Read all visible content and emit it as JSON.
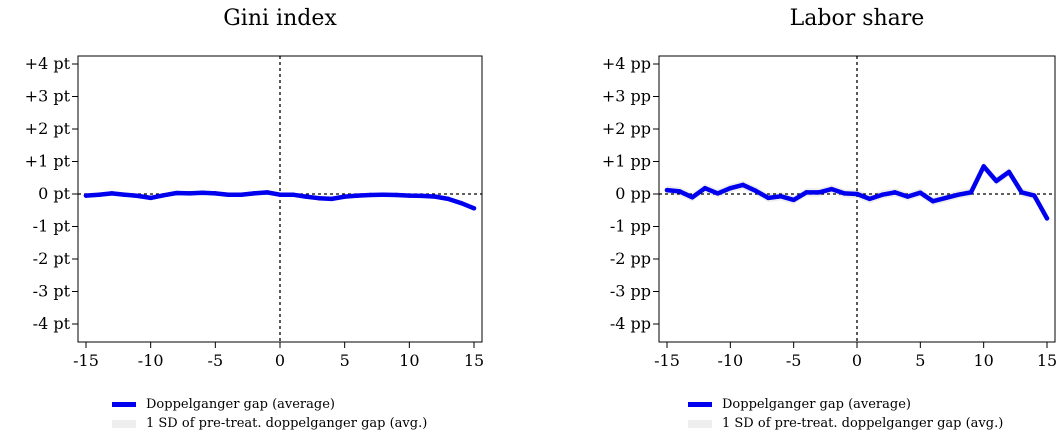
{
  "chart_data": [
    {
      "type": "line",
      "title": "Gini index",
      "xlabel": "",
      "ylabel": "",
      "xlim": [
        -15,
        15
      ],
      "ylim": [
        -4,
        4
      ],
      "x_ticks": [
        -15,
        -10,
        -5,
        0,
        5,
        10,
        15
      ],
      "x_tick_labels": [
        "-15",
        "-10",
        "-5",
        "0",
        "5",
        "10",
        "15"
      ],
      "y_ticks": [
        4,
        3,
        2,
        1,
        0,
        -1,
        -2,
        -3,
        -4
      ],
      "y_tick_labels": [
        "+4 pt",
        "+3 pt",
        "+2 pt",
        "+1 pt",
        "0 pt",
        "-1 pt",
        "-2 pt",
        "-3 pt",
        "-4 pt"
      ],
      "reference_lines": {
        "vertical_x": 0,
        "horizontal_y": 0
      },
      "legend": [
        "Doppelganger gap (average)",
        "1 SD of pre-treat. doppelganger gap (avg.)"
      ],
      "legend_position": "bottom",
      "x": [
        -15,
        -14,
        -13,
        -12,
        -11,
        -10,
        -9,
        -8,
        -7,
        -6,
        -5,
        -4,
        -3,
        -2,
        -1,
        0,
        1,
        2,
        3,
        4,
        5,
        6,
        7,
        8,
        9,
        10,
        11,
        12,
        13,
        14,
        15
      ],
      "series": [
        {
          "name": "Doppelganger gap (average)",
          "color": "#0000ee",
          "values": [
            -0.05,
            -0.02,
            0.02,
            -0.02,
            -0.06,
            -0.12,
            -0.04,
            0.03,
            0.02,
            0.04,
            0.02,
            -0.02,
            -0.02,
            0.02,
            0.05,
            -0.02,
            -0.02,
            -0.08,
            -0.13,
            -0.15,
            -0.08,
            -0.05,
            -0.03,
            -0.02,
            -0.03,
            -0.05,
            -0.06,
            -0.08,
            -0.15,
            -0.28,
            -0.44
          ]
        }
      ],
      "band": {
        "name": "1 SD of pre-treat. doppelganger gap (avg.)",
        "color": "#eeeeee",
        "sd": 0.06
      }
    },
    {
      "type": "line",
      "title": "Labor share",
      "xlabel": "",
      "ylabel": "",
      "xlim": [
        -15,
        15
      ],
      "ylim": [
        -4,
        4
      ],
      "x_ticks": [
        -15,
        -10,
        -5,
        0,
        5,
        10,
        15
      ],
      "x_tick_labels": [
        "-15",
        "-10",
        "-5",
        "0",
        "5",
        "10",
        "15"
      ],
      "y_ticks": [
        4,
        3,
        2,
        1,
        0,
        -1,
        -2,
        -3,
        -4
      ],
      "y_tick_labels": [
        "+4 pp",
        "+3 pp",
        "+2 pp",
        "+1 pp",
        "0 pp",
        "-1 pp",
        "-2 pp",
        "-3 pp",
        "-4 pp"
      ],
      "reference_lines": {
        "vertical_x": 0,
        "horizontal_y": 0
      },
      "legend": [
        "Doppelganger gap (average)",
        "1 SD of pre-treat. doppelganger gap (avg.)"
      ],
      "legend_position": "bottom",
      "x": [
        -15,
        -14,
        -13,
        -12,
        -11,
        -10,
        -9,
        -8,
        -7,
        -6,
        -5,
        -4,
        -3,
        -2,
        -1,
        0,
        1,
        2,
        3,
        4,
        5,
        6,
        7,
        8,
        9,
        10,
        11,
        12,
        13,
        14,
        15
      ],
      "series": [
        {
          "name": "Doppelganger gap (average)",
          "color": "#0000ee",
          "values": [
            0.12,
            0.08,
            -0.1,
            0.18,
            0.02,
            0.18,
            0.28,
            0.1,
            -0.12,
            -0.07,
            -0.18,
            0.05,
            0.05,
            0.15,
            0.02,
            0.0,
            -0.15,
            -0.02,
            0.05,
            -0.08,
            0.04,
            -0.22,
            -0.12,
            -0.02,
            0.05,
            0.85,
            0.4,
            0.68,
            0.05,
            -0.05,
            -0.75
          ]
        }
      ],
      "band": {
        "name": "1 SD of pre-treat. doppelganger gap (avg.)",
        "color": "#eeeeee",
        "sd": 0.13
      }
    }
  ]
}
